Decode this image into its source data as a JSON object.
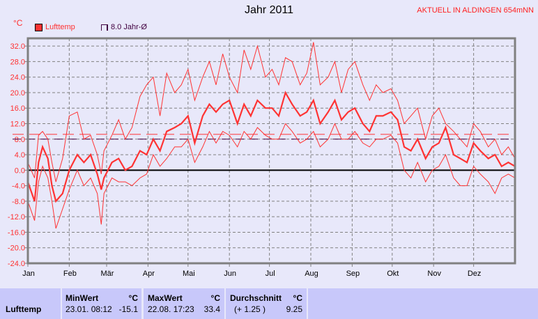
{
  "header": {
    "title": "Jahr 2011",
    "station": "AKTUELL IN ALDINGEN 654mNN",
    "unit": "°C"
  },
  "legend": [
    {
      "label": "Lufttemp",
      "color": "#ff3333"
    },
    {
      "label": "8.0 Jahr-Ø",
      "color": "#400040"
    }
  ],
  "chart_data": {
    "type": "line",
    "title": "Jahr 2011",
    "ylabel": "°C",
    "ylim": [
      -24,
      34
    ],
    "yticks": [
      "32.0",
      "28.0",
      "24.0",
      "20.0",
      "16.0",
      "12.0",
      "8.0",
      "4.0",
      "0.0",
      "-4.0",
      "-8.0",
      "-12.0",
      "-16.0",
      "-20.0",
      "-24.0"
    ],
    "ytick_values": [
      32,
      28,
      24,
      20,
      16,
      12,
      8,
      4,
      0,
      -4,
      -8,
      -12,
      -16,
      -20,
      -24
    ],
    "xticks": [
      "Jan",
      "Feb",
      "Mär",
      "Apr",
      "Mai",
      "Jun",
      "Jul",
      "Aug",
      "Sep",
      "Okt",
      "Nov",
      "Dez"
    ],
    "xtick_days": [
      0,
      31,
      59,
      90,
      120,
      151,
      181,
      212,
      243,
      273,
      304,
      334
    ],
    "xlim_days": [
      0,
      365
    ],
    "grid": true,
    "day_of_year": [
      0,
      5,
      8,
      11,
      15,
      18,
      21,
      26,
      31,
      37,
      42,
      47,
      52,
      55,
      57,
      63,
      68,
      73,
      78,
      84,
      89,
      94,
      99,
      104,
      110,
      115,
      120,
      125,
      131,
      136,
      141,
      146,
      151,
      157,
      162,
      167,
      172,
      178,
      183,
      188,
      193,
      198,
      204,
      209,
      214,
      219,
      225,
      230,
      235,
      240,
      245,
      251,
      256,
      261,
      266,
      272,
      277,
      282,
      287,
      292,
      298,
      303,
      308,
      313,
      319,
      324,
      329,
      334,
      339,
      345,
      350,
      355,
      360,
      365
    ],
    "series": [
      {
        "name": "Lufttemp",
        "role": "mean",
        "values": [
          -3,
          -8,
          2,
          6,
          3,
          -4,
          -8,
          -6,
          0,
          4,
          2,
          4,
          -1,
          -5,
          -2,
          2,
          3,
          0,
          1,
          5,
          4,
          8,
          5,
          10,
          11,
          12,
          14,
          7,
          14,
          17,
          15,
          17,
          18,
          12,
          17,
          14,
          18,
          16,
          16,
          14,
          20,
          17,
          14,
          15,
          18,
          12,
          15,
          18,
          13,
          15,
          16,
          12,
          10,
          14,
          14,
          15,
          13,
          6,
          5,
          8,
          3,
          6,
          7,
          11,
          4,
          3,
          2,
          7,
          5,
          3,
          4,
          1,
          2,
          1
        ]
      },
      {
        "role": "max",
        "values": [
          2,
          -2,
          9,
          10,
          8,
          2,
          -3,
          3,
          14,
          15,
          8,
          9,
          4,
          -1,
          5,
          9,
          13,
          8,
          11,
          19,
          22,
          24,
          14,
          25,
          20,
          22,
          26,
          18,
          24,
          28,
          22,
          30,
          24,
          20,
          31,
          26,
          32,
          24,
          26,
          22,
          29,
          28,
          22,
          25,
          33,
          22,
          24,
          28,
          20,
          26,
          28,
          22,
          18,
          22,
          20,
          21,
          18,
          12,
          14,
          16,
          8,
          14,
          16,
          12,
          10,
          8,
          6,
          12,
          10,
          6,
          8,
          4,
          6,
          3
        ]
      },
      {
        "role": "min",
        "values": [
          -8,
          -13,
          -3,
          1,
          -2,
          -8,
          -15,
          -10,
          -5,
          0,
          -4,
          -2,
          -6,
          -14,
          -6,
          -2,
          -3,
          -3,
          -4,
          -2,
          -1,
          4,
          1,
          3,
          6,
          6,
          8,
          2,
          6,
          10,
          7,
          10,
          9,
          6,
          10,
          8,
          11,
          9,
          8,
          8,
          12,
          10,
          7,
          8,
          10,
          6,
          8,
          12,
          8,
          8,
          10,
          7,
          6,
          8,
          8,
          9,
          7,
          0,
          -2,
          2,
          -3,
          0,
          1,
          4,
          -2,
          -4,
          -4,
          1,
          -1,
          -3,
          -6,
          -2,
          -1,
          -2
        ]
      }
    ],
    "reference_lines": [
      {
        "label": "Durchschnitt",
        "value": 9.25,
        "color": "#ff3333"
      },
      {
        "label": "8.0 Jahr-Ø",
        "value": 8.0,
        "color": "#400040"
      }
    ]
  },
  "table": {
    "row_label": "Lufttemp",
    "min": {
      "header": "MinWert",
      "unit": "°C",
      "date": "23.01.  08:12",
      "value": "-15.1"
    },
    "max": {
      "header": "MaxWert",
      "unit": "°C",
      "date": "22.08.  17:23",
      "value": "33.4"
    },
    "avg": {
      "header": "Durchschnitt",
      "unit": "°C",
      "delta": "(+ 1.25 )",
      "value": "9.25"
    }
  }
}
